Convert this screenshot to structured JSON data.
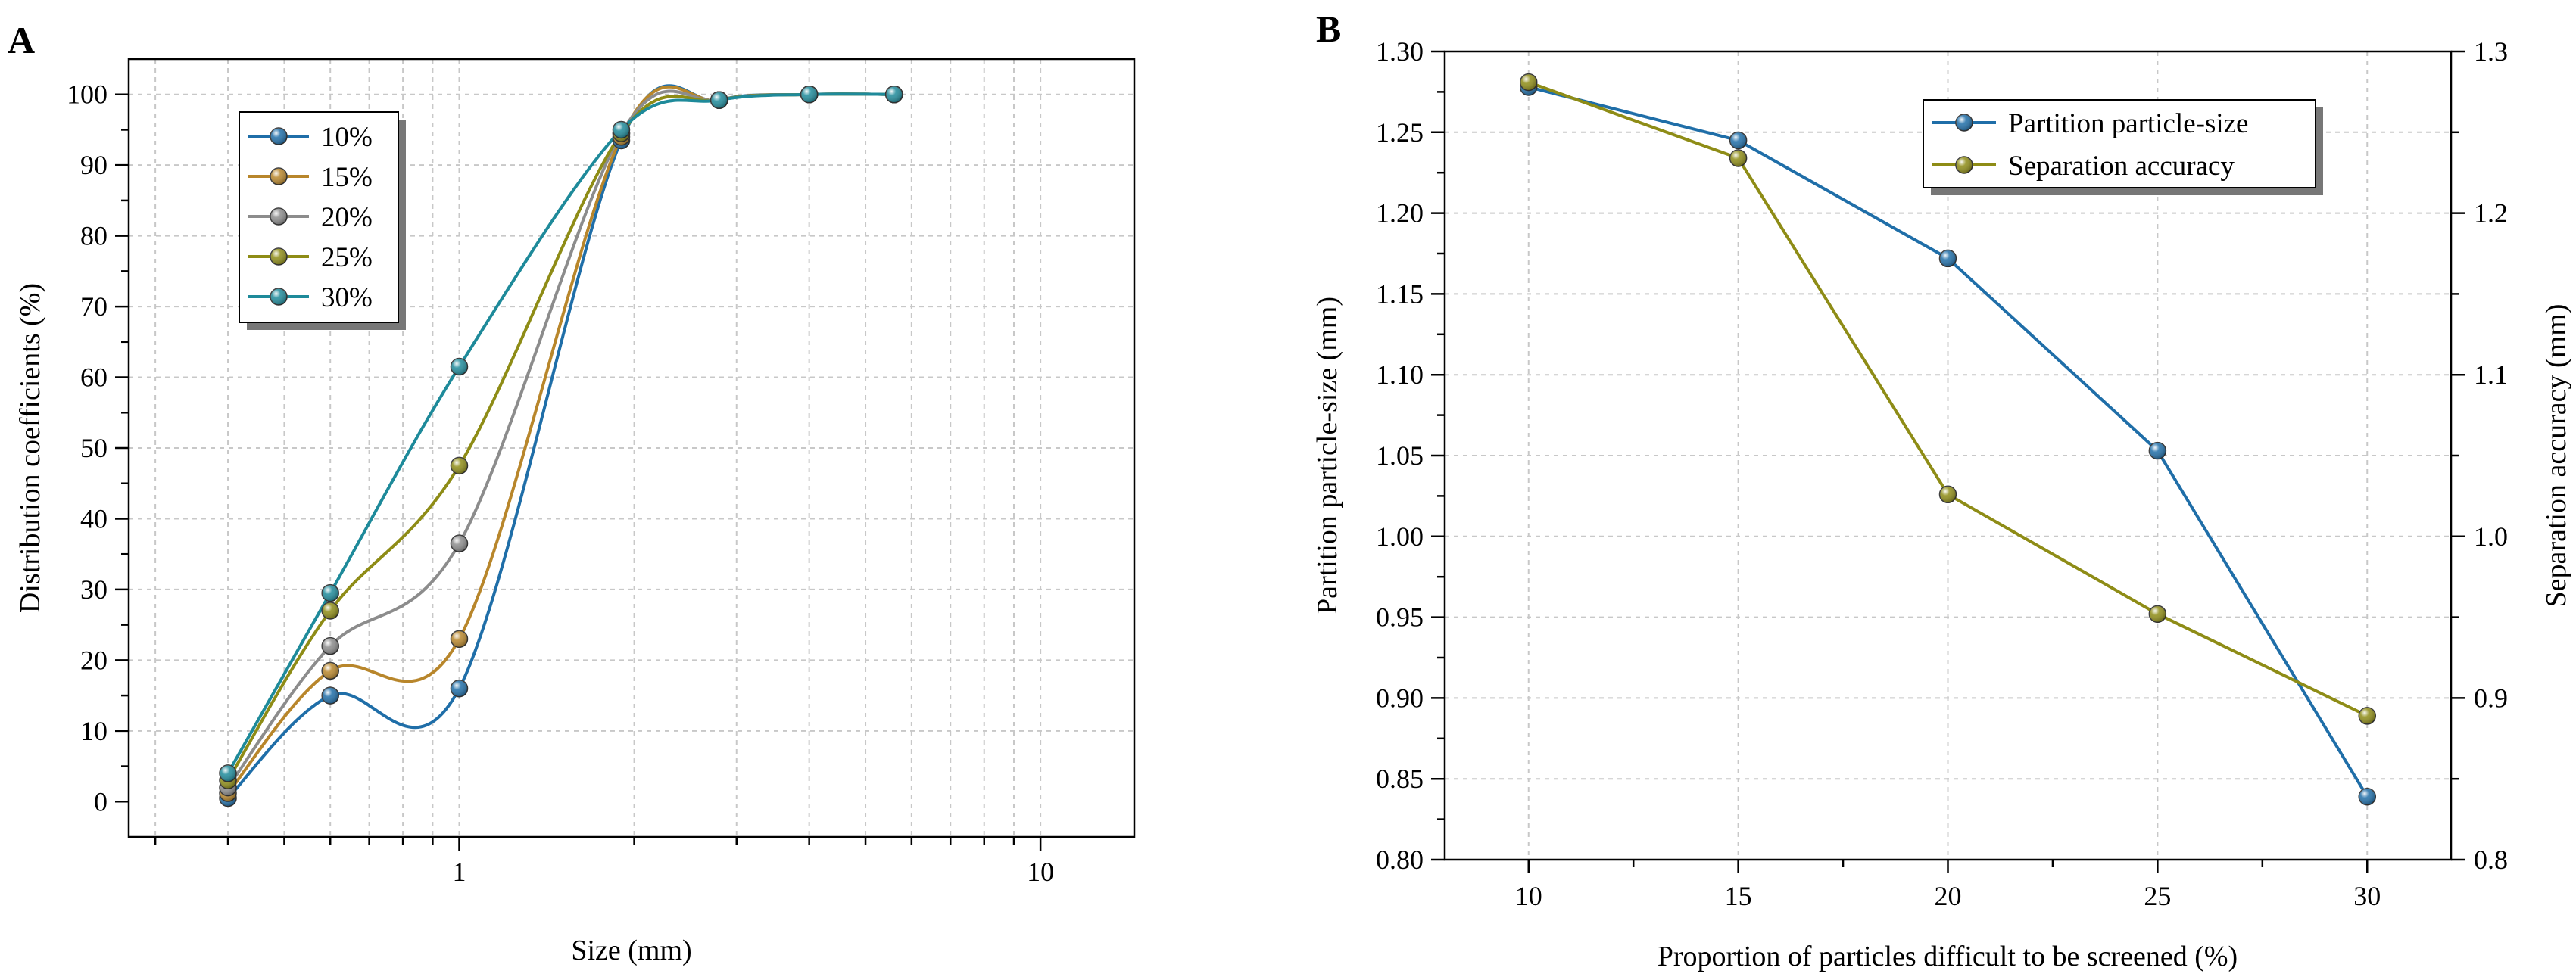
{
  "chart_data": [
    {
      "panel": "A",
      "type": "line",
      "xscale": "log",
      "xlabel": "Size (mm)",
      "ylabel": "Distribution coefficients (%)",
      "xlim": [
        0.27,
        14.5
      ],
      "ylim": [
        -5,
        105
      ],
      "xticks": [
        1,
        10
      ],
      "xtick_labels": [
        "1",
        "10"
      ],
      "yticks": [
        0,
        10,
        20,
        30,
        40,
        50,
        60,
        70,
        80,
        90,
        100
      ],
      "grid": true,
      "legend": {
        "position": "top-left"
      },
      "x": [
        0.4,
        0.6,
        1.0,
        1.9,
        2.8,
        4.0,
        5.6
      ],
      "series": [
        {
          "name": "10%",
          "color": "#1f6ea8",
          "values": [
            0.5,
            15,
            16,
            93.5,
            99.2,
            100,
            100
          ]
        },
        {
          "name": "15%",
          "color": "#b8862b",
          "values": [
            1.2,
            18.5,
            23,
            94,
            99.2,
            100,
            100
          ]
        },
        {
          "name": "20%",
          "color": "#8c8c8c",
          "values": [
            2,
            22,
            36.5,
            94.5,
            99.2,
            100,
            100
          ]
        },
        {
          "name": "25%",
          "color": "#8e8c16",
          "values": [
            3,
            27,
            47.5,
            94.5,
            99.2,
            100,
            100
          ]
        },
        {
          "name": "30%",
          "color": "#1e8a9a",
          "values": [
            4,
            29.5,
            61.5,
            95,
            99.2,
            100,
            100
          ]
        }
      ]
    },
    {
      "panel": "B",
      "type": "line",
      "xlabel": "Proportion of particles difficult to be screened (%)",
      "ylabel": "Partition particle-size (mm)",
      "y2label": "Separation accuracy (mm)",
      "x": [
        10,
        15,
        20,
        25,
        30
      ],
      "xticks": [
        "10",
        "15",
        "20",
        "25",
        "30"
      ],
      "xlim": [
        8,
        32
      ],
      "ylim": [
        0.8,
        1.3
      ],
      "yticks": [
        "0.80",
        "0.85",
        "0.90",
        "0.95",
        "1.00",
        "1.05",
        "1.10",
        "1.15",
        "1.20",
        "1.25",
        "1.30"
      ],
      "y2lim": [
        0.8,
        1.3
      ],
      "y2ticks": [
        "0.8",
        "0.9",
        "1.0",
        "1.1",
        "1.2",
        "1.3"
      ],
      "grid": true,
      "legend": {
        "position": "top-right"
      },
      "series": [
        {
          "name": "Partition particle-size",
          "axis": "left",
          "color": "#1f6ea8",
          "values": [
            1.278,
            1.245,
            1.172,
            1.053,
            0.839
          ]
        },
        {
          "name": "Separation accuracy",
          "axis": "right",
          "color": "#8e8c16",
          "values": [
            1.281,
            1.234,
            1.026,
            0.952,
            0.889
          ]
        }
      ]
    }
  ]
}
